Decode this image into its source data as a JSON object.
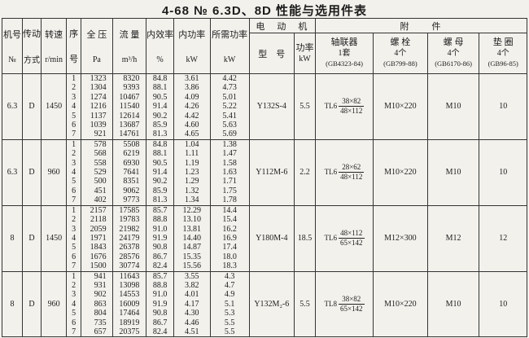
{
  "page": {
    "title": "4-68 № 6.3D、8D 性能与选用件表"
  },
  "header": {
    "machine_no": {
      "l1": "机号",
      "l2": "№"
    },
    "drive": {
      "l1": "传动",
      "l2": "方式"
    },
    "speed": {
      "l1": "转速",
      "l2": "r/min"
    },
    "seq": {
      "l1": "序",
      "l2": "号"
    },
    "pressure": {
      "l1": "全  压",
      "l2": "Pa"
    },
    "flow": {
      "l1": "流  量",
      "l2": "m³/h"
    },
    "efficiency": {
      "l1": "内效率",
      "l2": "%"
    },
    "internal_power": {
      "l1": "内功率",
      "l2": "kW"
    },
    "required_power": {
      "l1": "所需功率",
      "l2": "kW"
    },
    "motor_group": "电　动　机",
    "accessories_group": "附　　件",
    "motor_model": "型　号",
    "motor_power": {
      "l1": "功率",
      "l2": "kW"
    },
    "coupling": {
      "l1": "轴联器",
      "l2": "1套",
      "l3": "(GB4323-84)"
    },
    "bolt": {
      "l1": "螺  栓",
      "l2": "4个",
      "l3": "(GB799-88)"
    },
    "nut": {
      "l1": "螺  母",
      "l2": "4个",
      "l3": "(GB6170-86)"
    },
    "washer": {
      "l1": "垫  圈",
      "l2": "4个",
      "l3": "(GB96-85)"
    }
  },
  "blocks": [
    {
      "machine_no": "6.3",
      "drive": "D",
      "speed": "1450",
      "rows": [
        [
          "1",
          "1323",
          "8320",
          "84.8",
          "3.61",
          "4.42"
        ],
        [
          "2",
          "1304",
          "9393",
          "88.1",
          "3.86",
          "4.73"
        ],
        [
          "3",
          "1274",
          "10467",
          "90.5",
          "4.09",
          "5.01"
        ],
        [
          "4",
          "1216",
          "11540",
          "91.4",
          "4.26",
          "5.22"
        ],
        [
          "5",
          "1137",
          "12614",
          "90.2",
          "4.42",
          "5.41"
        ],
        [
          "6",
          "1039",
          "13687",
          "85.9",
          "4.60",
          "5.63"
        ],
        [
          "7",
          "921",
          "14761",
          "81.3",
          "4.65",
          "5.69"
        ]
      ],
      "motor_model": "Y132S-4",
      "motor_power": "5.5",
      "coupling": {
        "type": "TL6",
        "top": "38×82",
        "bottom": "48×112"
      },
      "bolt": "M10×220",
      "nut": "M10",
      "washer": "10"
    },
    {
      "machine_no": "6.3",
      "drive": "D",
      "speed": "960",
      "rows": [
        [
          "1",
          "578",
          "5508",
          "84.8",
          "1.04",
          "1.38"
        ],
        [
          "2",
          "568",
          "6219",
          "88.1",
          "1.11",
          "1.47"
        ],
        [
          "3",
          "558",
          "6930",
          "90.5",
          "1.19",
          "1.58"
        ],
        [
          "4",
          "529",
          "7641",
          "91.4",
          "1.23",
          "1.63"
        ],
        [
          "5",
          "500",
          "8351",
          "90.2",
          "1.29",
          "1.71"
        ],
        [
          "6",
          "451",
          "9062",
          "85.9",
          "1.32",
          "1.75"
        ],
        [
          "7",
          "402",
          "9773",
          "81.3",
          "1.34",
          "1.78"
        ]
      ],
      "motor_model": "Y112M-6",
      "motor_power": "2.2",
      "coupling": {
        "type": "TL6",
        "top": "28×62",
        "bottom": "48×112"
      },
      "bolt": "M10×220",
      "nut": "M10",
      "washer": "10"
    },
    {
      "machine_no": "8",
      "drive": "D",
      "speed": "1450",
      "rows": [
        [
          "1",
          "2157",
          "17585",
          "85.7",
          "12.29",
          "14.4"
        ],
        [
          "2",
          "2118",
          "19783",
          "88.8",
          "13.10",
          "15.4"
        ],
        [
          "3",
          "2059",
          "21982",
          "91.0",
          "13.81",
          "16.2"
        ],
        [
          "4",
          "1971",
          "24179",
          "91.9",
          "14.40",
          "16.9"
        ],
        [
          "5",
          "1843",
          "26378",
          "90.8",
          "14.87",
          "17.4"
        ],
        [
          "6",
          "1676",
          "28576",
          "86.7",
          "15.35",
          "18.0"
        ],
        [
          "7",
          "1500",
          "30774",
          "82.4",
          "15.56",
          "18.3"
        ]
      ],
      "motor_model": "Y180M-4",
      "motor_power": "18.5",
      "coupling": {
        "type": "TL6",
        "top": "48×112",
        "bottom": "65×142"
      },
      "bolt": "M12×300",
      "nut": "M12",
      "washer": "12"
    },
    {
      "machine_no": "8",
      "drive": "D",
      "speed": "960",
      "rows": [
        [
          "1",
          "941",
          "11643",
          "85.7",
          "3.55",
          "4.3"
        ],
        [
          "2",
          "931",
          "13098",
          "88.8",
          "3.82",
          "4.7"
        ],
        [
          "3",
          "902",
          "14553",
          "91.0",
          "4.01",
          "4.9"
        ],
        [
          "4",
          "863",
          "16009",
          "91.9",
          "4.17",
          "5.1"
        ],
        [
          "5",
          "804",
          "17464",
          "90.8",
          "4.30",
          "5.3"
        ],
        [
          "6",
          "735",
          "18919",
          "86.7",
          "4.46",
          "5.5"
        ],
        [
          "7",
          "657",
          "20375",
          "82.4",
          "4.51",
          "5.5"
        ]
      ],
      "motor_model": "Y132M₂-6",
      "motor_power": "5.5",
      "coupling": {
        "type": "TL8",
        "top": "38×82",
        "bottom": "65×142"
      },
      "bolt": "M10×220",
      "nut": "M10",
      "washer": "10"
    }
  ]
}
